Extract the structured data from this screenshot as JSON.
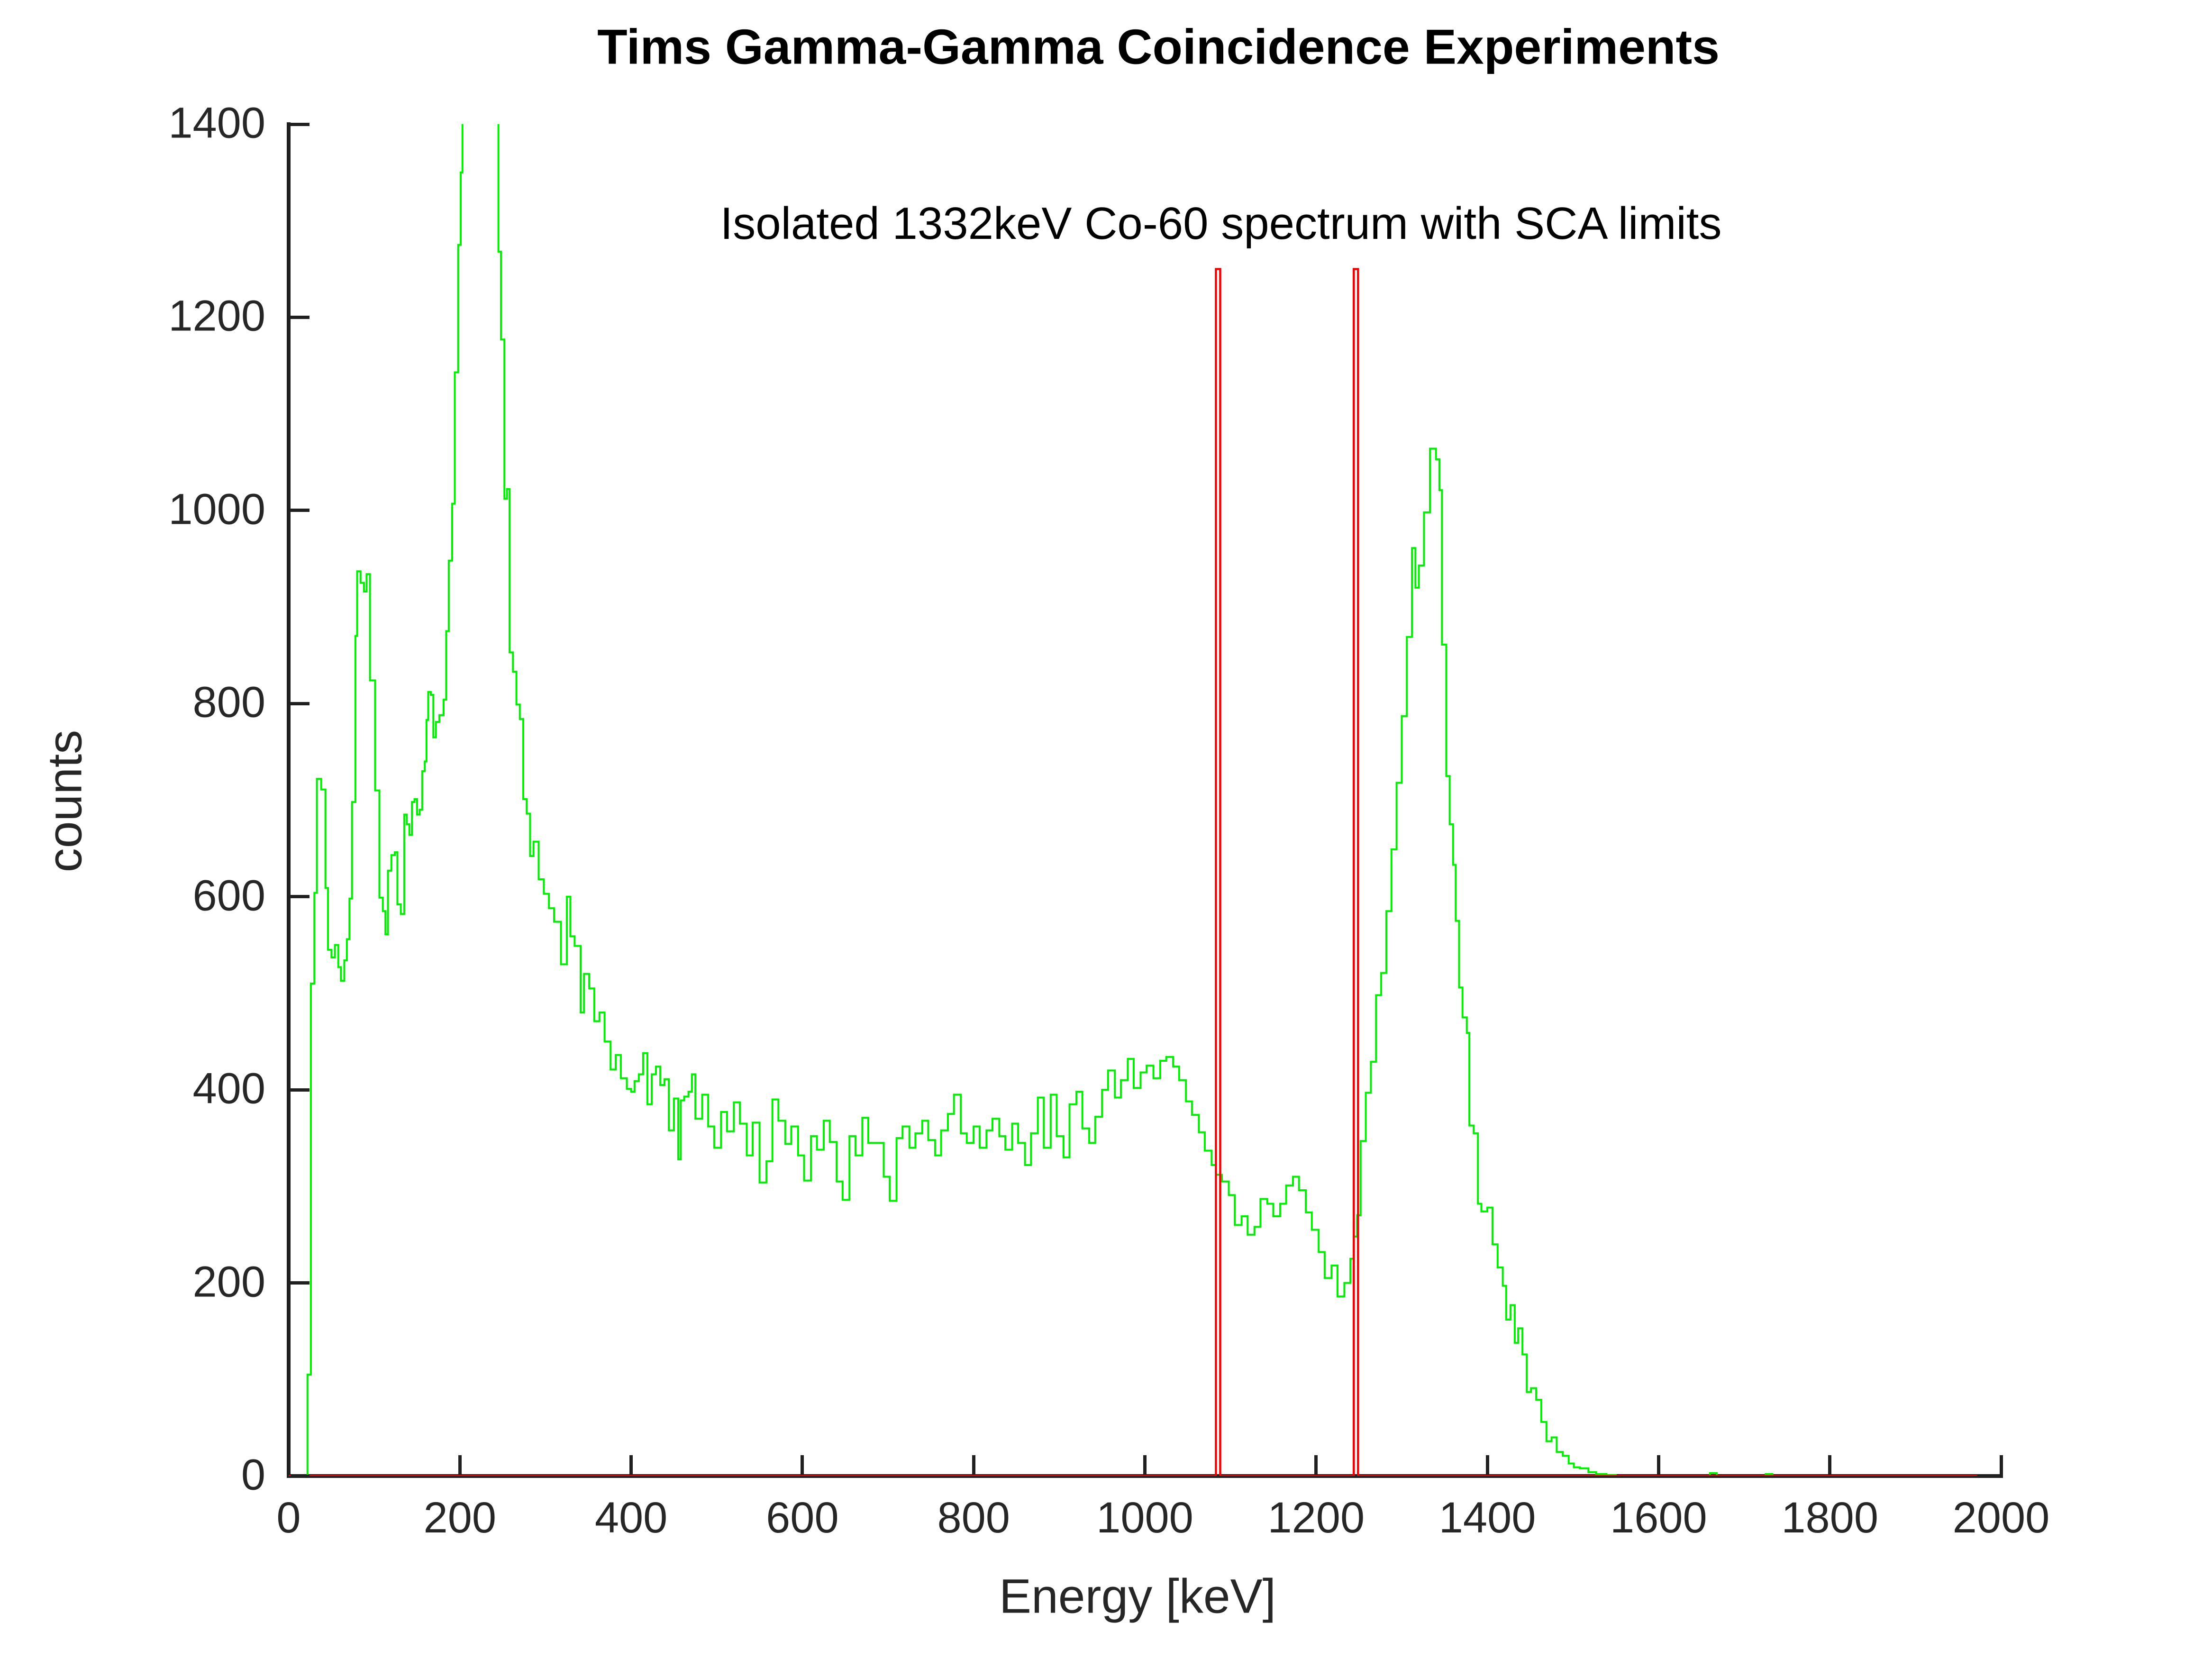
{
  "header": {
    "title": "Tims Gamma-Gamma Coincidence Experiments",
    "subtitle": "Isolated 1332keV Co-60 spectrum with SCA limits"
  },
  "chart_data": {
    "type": "line",
    "title": "Tims Gamma-Gamma Coincidence Experiments",
    "subtitle": "Isolated 1332keV Co-60 spectrum with SCA limits",
    "xlabel": "Energy [keV]",
    "ylabel": "counts",
    "xlim": [
      0,
      2000
    ],
    "ylim": [
      0,
      1400
    ],
    "xticks": [
      0,
      200,
      400,
      600,
      800,
      1000,
      1200,
      1400,
      1600,
      1800,
      2000
    ],
    "yticks": [
      0,
      200,
      400,
      600,
      800,
      1000,
      1200,
      1400
    ],
    "grid": false,
    "legend": "none",
    "axis_color": "#262626",
    "notes": {
      "peak_clipped_above_ylim_keV": [
        203,
        245
      ],
      "photopeak": {
        "energy_keV": 1332,
        "counts": 1064
      },
      "sca_window_markers_keV": [
        [
          1083,
          1088
        ],
        [
          1244,
          1249
        ]
      ],
      "sca_marker_height_counts": 1250
    },
    "series": [
      {
        "name": "co60-spectrum",
        "color": "#00ee00",
        "style": "stairs",
        "end_x": 1972,
        "points": [
          [
            22,
            105
          ],
          [
            26,
            510
          ],
          [
            30,
            604
          ],
          [
            33,
            722
          ],
          [
            38,
            711
          ],
          [
            43,
            609
          ],
          [
            46,
            545
          ],
          [
            50,
            537
          ],
          [
            54,
            550
          ],
          [
            58,
            527
          ],
          [
            61,
            513
          ],
          [
            65,
            534
          ],
          [
            68,
            556
          ],
          [
            71,
            598
          ],
          [
            74,
            698
          ],
          [
            78,
            870
          ],
          [
            80,
            937
          ],
          [
            84,
            925
          ],
          [
            88,
            916
          ],
          [
            91,
            934
          ],
          [
            95,
            824
          ],
          [
            101,
            710
          ],
          [
            106,
            599
          ],
          [
            110,
            585
          ],
          [
            113,
            561
          ],
          [
            116,
            627
          ],
          [
            120,
            643
          ],
          [
            124,
            646
          ],
          [
            127,
            592
          ],
          [
            131,
            582
          ],
          [
            135,
            685
          ],
          [
            138,
            675
          ],
          [
            141,
            664
          ],
          [
            144,
            698
          ],
          [
            147,
            701
          ],
          [
            150,
            685
          ],
          [
            153,
            690
          ],
          [
            156,
            730
          ],
          [
            159,
            740
          ],
          [
            161,
            783
          ],
          [
            163,
            812
          ],
          [
            166,
            809
          ],
          [
            169,
            765
          ],
          [
            172,
            781
          ],
          [
            176,
            788
          ],
          [
            181,
            804
          ],
          [
            184,
            875
          ],
          [
            187,
            948
          ],
          [
            191,
            1007
          ],
          [
            194,
            1143
          ],
          [
            198,
            1275
          ],
          [
            201,
            1350
          ],
          [
            203,
            1500
          ],
          [
            245,
            1268
          ],
          [
            248,
            1177
          ],
          [
            252,
            1012
          ],
          [
            255,
            1022
          ],
          [
            258,
            853
          ],
          [
            262,
            833
          ],
          [
            266,
            799
          ],
          [
            270,
            784
          ],
          [
            274,
            701
          ],
          [
            278,
            686
          ],
          [
            282,
            642
          ],
          [
            286,
            657
          ],
          [
            292,
            618
          ],
          [
            298,
            603
          ],
          [
            304,
            588
          ],
          [
            310,
            574
          ],
          [
            318,
            530
          ],
          [
            325,
            600
          ],
          [
            329,
            559
          ],
          [
            334,
            549
          ],
          [
            341,
            480
          ],
          [
            345,
            520
          ],
          [
            351,
            505
          ],
          [
            357,
            471
          ],
          [
            363,
            480
          ],
          [
            369,
            450
          ],
          [
            376,
            421
          ],
          [
            382,
            436
          ],
          [
            388,
            412
          ],
          [
            395,
            401
          ],
          [
            400,
            398
          ],
          [
            404,
            409
          ],
          [
            409,
            416
          ],
          [
            414,
            438
          ],
          [
            419,
            385
          ],
          [
            424,
            416
          ],
          [
            429,
            424
          ],
          [
            434,
            405
          ],
          [
            439,
            411
          ],
          [
            444,
            358
          ],
          [
            450,
            391
          ],
          [
            455,
            328
          ],
          [
            458,
            389
          ],
          [
            462,
            393
          ],
          [
            467,
            398
          ],
          [
            471,
            416
          ],
          [
            475,
            370
          ],
          [
            483,
            395
          ],
          [
            490,
            362
          ],
          [
            497,
            340
          ],
          [
            505,
            377
          ],
          [
            512,
            357
          ],
          [
            520,
            387
          ],
          [
            527,
            365
          ],
          [
            535,
            332
          ],
          [
            542,
            366
          ],
          [
            550,
            304
          ],
          [
            558,
            326
          ],
          [
            565,
            390
          ],
          [
            572,
            368
          ],
          [
            580,
            344
          ],
          [
            587,
            362
          ],
          [
            595,
            332
          ],
          [
            602,
            306
          ],
          [
            610,
            352
          ],
          [
            617,
            338
          ],
          [
            625,
            368
          ],
          [
            632,
            346
          ],
          [
            640,
            305
          ],
          [
            647,
            286
          ],
          [
            655,
            352
          ],
          [
            662,
            332
          ],
          [
            670,
            371
          ],
          [
            677,
            345
          ],
          [
            687,
            345
          ],
          [
            695,
            310
          ],
          [
            702,
            285
          ],
          [
            710,
            350
          ],
          [
            717,
            362
          ],
          [
            725,
            340
          ],
          [
            732,
            355
          ],
          [
            740,
            368
          ],
          [
            747,
            348
          ],
          [
            755,
            332
          ],
          [
            762,
            358
          ],
          [
            770,
            375
          ],
          [
            777,
            395
          ],
          [
            785,
            355
          ],
          [
            792,
            345
          ],
          [
            800,
            362
          ],
          [
            807,
            340
          ],
          [
            815,
            358
          ],
          [
            822,
            370
          ],
          [
            830,
            352
          ],
          [
            837,
            338
          ],
          [
            845,
            365
          ],
          [
            852,
            345
          ],
          [
            860,
            322
          ],
          [
            867,
            355
          ],
          [
            875,
            392
          ],
          [
            882,
            340
          ],
          [
            890,
            395
          ],
          [
            897,
            352
          ],
          [
            905,
            330
          ],
          [
            912,
            385
          ],
          [
            920,
            398
          ],
          [
            927,
            360
          ],
          [
            935,
            345
          ],
          [
            942,
            372
          ],
          [
            950,
            400
          ],
          [
            957,
            420
          ],
          [
            965,
            392
          ],
          [
            972,
            410
          ],
          [
            980,
            432
          ],
          [
            987,
            402
          ],
          [
            995,
            418
          ],
          [
            1002,
            425
          ],
          [
            1010,
            412
          ],
          [
            1018,
            430
          ],
          [
            1025,
            434
          ],
          [
            1033,
            424
          ],
          [
            1040,
            410
          ],
          [
            1048,
            388
          ],
          [
            1055,
            374
          ],
          [
            1063,
            356
          ],
          [
            1070,
            337
          ],
          [
            1078,
            322
          ],
          [
            1083,
            312
          ],
          [
            1090,
            305
          ],
          [
            1098,
            291
          ],
          [
            1105,
            260
          ],
          [
            1113,
            269
          ],
          [
            1120,
            250
          ],
          [
            1128,
            258
          ],
          [
            1135,
            287
          ],
          [
            1143,
            282
          ],
          [
            1150,
            269
          ],
          [
            1158,
            282
          ],
          [
            1165,
            301
          ],
          [
            1173,
            310
          ],
          [
            1180,
            296
          ],
          [
            1188,
            273
          ],
          [
            1195,
            255
          ],
          [
            1203,
            232
          ],
          [
            1210,
            205
          ],
          [
            1218,
            218
          ],
          [
            1225,
            186
          ],
          [
            1233,
            200
          ],
          [
            1240,
            225
          ],
          [
            1244,
            248
          ],
          [
            1248,
            270
          ],
          [
            1252,
            347
          ],
          [
            1258,
            397
          ],
          [
            1264,
            429
          ],
          [
            1270,
            498
          ],
          [
            1276,
            521
          ],
          [
            1282,
            585
          ],
          [
            1288,
            649
          ],
          [
            1294,
            718
          ],
          [
            1300,
            787
          ],
          [
            1306,
            869
          ],
          [
            1312,
            961
          ],
          [
            1316,
            920
          ],
          [
            1320,
            943
          ],
          [
            1326,
            998
          ],
          [
            1333,
            1064
          ],
          [
            1340,
            1053
          ],
          [
            1344,
            1021
          ],
          [
            1347,
            861
          ],
          [
            1352,
            725
          ],
          [
            1356,
            675
          ],
          [
            1360,
            633
          ],
          [
            1363,
            575
          ],
          [
            1367,
            506
          ],
          [
            1371,
            475
          ],
          [
            1376,
            459
          ],
          [
            1379,
            363
          ],
          [
            1384,
            355
          ],
          [
            1389,
            282
          ],
          [
            1393,
            274
          ],
          [
            1400,
            278
          ],
          [
            1406,
            240
          ],
          [
            1412,
            216
          ],
          [
            1418,
            197
          ],
          [
            1422,
            162
          ],
          [
            1427,
            177
          ],
          [
            1432,
            138
          ],
          [
            1436,
            153
          ],
          [
            1441,
            126
          ],
          [
            1446,
            87
          ],
          [
            1451,
            91
          ],
          [
            1457,
            79
          ],
          [
            1463,
            56
          ],
          [
            1469,
            36
          ],
          [
            1475,
            40
          ],
          [
            1481,
            25
          ],
          [
            1488,
            21
          ],
          [
            1495,
            13
          ],
          [
            1501,
            9
          ],
          [
            1508,
            8
          ],
          [
            1518,
            4
          ],
          [
            1527,
            2
          ],
          [
            1539,
            1
          ],
          [
            1550,
            0
          ],
          [
            1660,
            3
          ],
          [
            1668,
            0
          ],
          [
            1725,
            2
          ],
          [
            1733,
            0
          ]
        ]
      },
      {
        "name": "sca-limits",
        "color": "#f40000",
        "style": "stairs",
        "end_x": 1972,
        "points": [
          [
            0,
            0
          ],
          [
            1083,
            1250
          ],
          [
            1088,
            0
          ],
          [
            1244,
            1250
          ],
          [
            1249,
            0
          ]
        ]
      }
    ]
  }
}
